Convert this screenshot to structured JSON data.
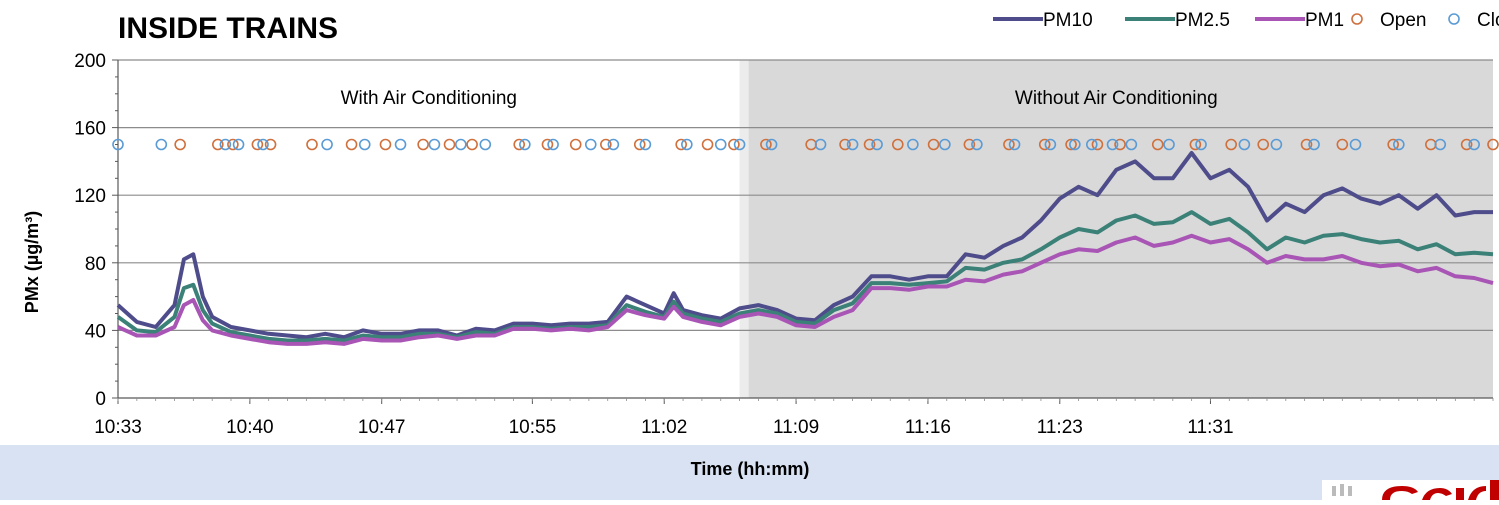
{
  "chart_data": {
    "type": "line",
    "title": "INSIDE TRAINS",
    "xlabel": "Time (hh:mm)",
    "ylabel": "PMx (µg/m³)",
    "ylim": [
      0,
      200
    ],
    "yticks": [
      0,
      40,
      80,
      120,
      160,
      200
    ],
    "xlim_minutes": [
      0,
      73
    ],
    "xticks": [
      "10:33",
      "10:40",
      "10:47",
      "10:55",
      "11:02",
      "11:09",
      "11:16",
      "11:23",
      "11:31"
    ],
    "grid": true,
    "legend_position": "top-right",
    "regions": [
      {
        "label": "With Air Conditioning",
        "x_start": "10:33",
        "x_end": "11:06"
      },
      {
        "label": "Without Air Conditioning",
        "x_start": "11:06",
        "x_end": "11:46"
      }
    ],
    "series": [
      {
        "name": "PM10",
        "color": "#4e4c8a",
        "x": [
          0,
          1,
          2,
          3,
          3.5,
          4,
          4.5,
          5,
          6,
          7,
          8,
          9,
          10,
          11,
          12,
          13,
          14,
          15,
          16,
          17,
          18,
          19,
          20,
          21,
          22,
          23,
          24,
          25,
          26,
          27,
          28,
          29,
          29.5,
          30,
          31,
          32,
          33,
          34,
          35,
          36,
          37,
          38,
          39,
          40,
          41,
          42,
          43,
          44,
          45,
          46,
          47,
          48,
          49,
          50,
          51,
          52,
          53,
          54,
          55,
          56,
          57,
          58,
          59,
          60,
          61,
          62,
          63,
          64,
          65,
          66,
          67,
          68,
          69,
          70,
          71,
          72,
          73
        ],
        "y": [
          55,
          45,
          42,
          55,
          82,
          85,
          60,
          48,
          42,
          40,
          38,
          37,
          36,
          38,
          36,
          40,
          38,
          38,
          40,
          40,
          37,
          41,
          40,
          44,
          44,
          43,
          44,
          44,
          45,
          60,
          55,
          50,
          62,
          52,
          49,
          47,
          53,
          55,
          52,
          47,
          46,
          55,
          60,
          72,
          72,
          70,
          72,
          72,
          85,
          83,
          90,
          95,
          105,
          118,
          125,
          120,
          135,
          140,
          130,
          130,
          145,
          130,
          135,
          125,
          105,
          115,
          110,
          120,
          124,
          118,
          115,
          120,
          112,
          120,
          108,
          110,
          110
        ]
      },
      {
        "name": "PM2.5",
        "color": "#3b8178",
        "x": [
          0,
          1,
          2,
          3,
          3.5,
          4,
          4.5,
          5,
          6,
          7,
          8,
          9,
          10,
          11,
          12,
          13,
          14,
          15,
          16,
          17,
          18,
          19,
          20,
          21,
          22,
          23,
          24,
          25,
          26,
          27,
          28,
          29,
          29.5,
          30,
          31,
          32,
          33,
          34,
          35,
          36,
          37,
          38,
          39,
          40,
          41,
          42,
          43,
          44,
          45,
          46,
          47,
          48,
          49,
          50,
          51,
          52,
          53,
          54,
          55,
          56,
          57,
          58,
          59,
          60,
          61,
          62,
          63,
          64,
          65,
          66,
          67,
          68,
          69,
          70,
          71,
          72,
          73
        ],
        "y": [
          48,
          40,
          39,
          48,
          65,
          67,
          52,
          44,
          39,
          37,
          35,
          34,
          34,
          35,
          34,
          37,
          36,
          36,
          38,
          38,
          36,
          39,
          38,
          42,
          42,
          41,
          42,
          42,
          43,
          55,
          51,
          48,
          57,
          50,
          47,
          45,
          50,
          52,
          50,
          45,
          44,
          52,
          56,
          68,
          68,
          67,
          68,
          69,
          77,
          76,
          80,
          82,
          88,
          95,
          100,
          98,
          105,
          108,
          103,
          104,
          110,
          103,
          106,
          98,
          88,
          95,
          92,
          96,
          97,
          94,
          92,
          93,
          88,
          91,
          85,
          86,
          85
        ]
      },
      {
        "name": "PM1",
        "color": "#a855b5",
        "x": [
          0,
          1,
          2,
          3,
          3.5,
          4,
          4.5,
          5,
          6,
          7,
          8,
          9,
          10,
          11,
          12,
          13,
          14,
          15,
          16,
          17,
          18,
          19,
          20,
          21,
          22,
          23,
          24,
          25,
          26,
          27,
          28,
          29,
          29.5,
          30,
          31,
          32,
          33,
          34,
          35,
          36,
          37,
          38,
          39,
          40,
          41,
          42,
          43,
          44,
          45,
          46,
          47,
          48,
          49,
          50,
          51,
          52,
          53,
          54,
          55,
          56,
          57,
          58,
          59,
          60,
          61,
          62,
          63,
          64,
          65,
          66,
          67,
          68,
          69,
          70,
          71,
          72,
          73
        ],
        "y": [
          42,
          37,
          37,
          42,
          55,
          58,
          46,
          40,
          37,
          35,
          33,
          32,
          32,
          33,
          32,
          35,
          34,
          34,
          36,
          37,
          35,
          37,
          37,
          41,
          41,
          40,
          41,
          40,
          42,
          52,
          49,
          47,
          54,
          48,
          45,
          43,
          48,
          50,
          48,
          43,
          42,
          48,
          52,
          65,
          65,
          64,
          66,
          66,
          70,
          69,
          73,
          75,
          80,
          85,
          88,
          87,
          92,
          95,
          90,
          92,
          96,
          92,
          94,
          88,
          80,
          84,
          82,
          82,
          84,
          80,
          78,
          79,
          75,
          77,
          72,
          71,
          68
        ]
      }
    ],
    "markers": {
      "y": 150,
      "open": {
        "name": "Open",
        "color": "#d0703c",
        "x": [
          3.3,
          5.3,
          6.1,
          7.4,
          8.1,
          10.3,
          12.4,
          14.2,
          16.2,
          17.6,
          18.8,
          21.3,
          22.8,
          24.3,
          25.9,
          27.7,
          29.9,
          31.3,
          32.7,
          34.4,
          36.8,
          38.6,
          39.9,
          41.4,
          43.3,
          45.2,
          47.3,
          49.2,
          50.6,
          52.0,
          53.2,
          55.2,
          57.2,
          59.1,
          60.8,
          63.1,
          65.0,
          67.7,
          69.7,
          71.6,
          73.0
        ]
      },
      "close": {
        "name": "Close",
        "color": "#5a9bd5",
        "x": [
          0.0,
          2.3,
          5.7,
          6.4,
          7.7,
          11.1,
          13.1,
          15.0,
          16.8,
          18.2,
          19.5,
          21.6,
          23.1,
          25.1,
          26.3,
          28.0,
          30.2,
          32.0,
          33.0,
          34.7,
          37.3,
          39.0,
          40.3,
          42.2,
          43.9,
          45.6,
          47.6,
          49.5,
          50.8,
          51.7,
          52.8,
          53.8,
          55.8,
          57.5,
          59.8,
          61.5,
          63.5,
          65.7,
          68.0,
          70.2,
          72.0
        ]
      }
    },
    "logo_text": "CSIC"
  }
}
